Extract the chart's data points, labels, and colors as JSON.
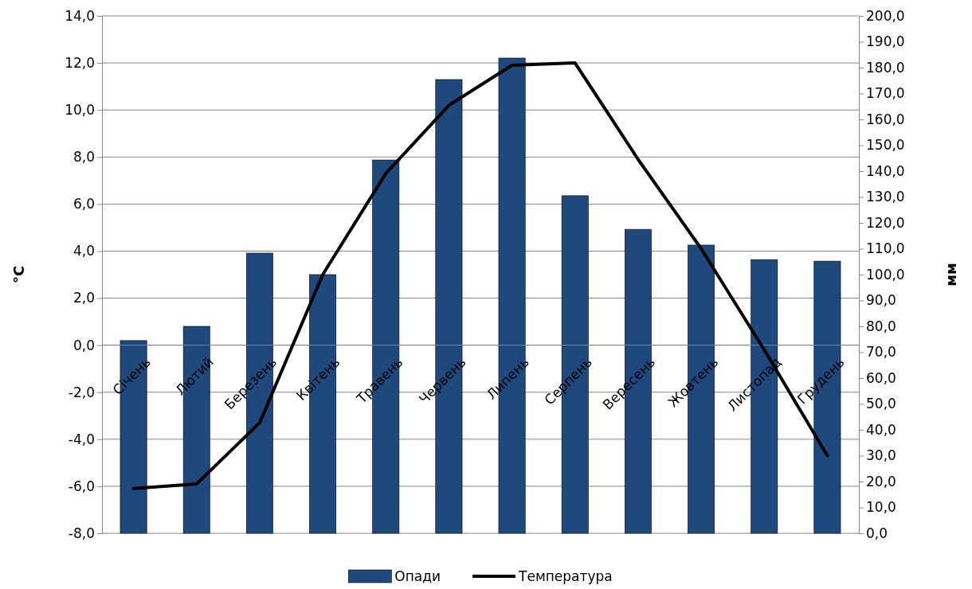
{
  "chart_data": {
    "type": "bar",
    "ylabel": "°C",
    "y2label": "мм",
    "categories": [
      "Січень",
      "Лютий",
      "Березень",
      "Квітень",
      "Травень",
      "Червень",
      "Липень",
      "Серпень",
      "Вересень",
      "Жовтень",
      "Листопад",
      "Грудень"
    ],
    "series": [
      {
        "name": "Опади",
        "axis": "y2",
        "color": "#1f497d",
        "values": [
          74.5,
          80.0,
          108.3,
          100.0,
          144.3,
          175.4,
          183.7,
          130.5,
          117.5,
          111.4,
          105.8,
          105.2
        ]
      },
      {
        "name": "Температура",
        "type": "line",
        "axis": "y",
        "color": "#000000",
        "values": [
          -6.1,
          -5.9,
          -3.3,
          3.0,
          7.3,
          10.2,
          11.9,
          12.0,
          7.9,
          4.1,
          -0.2,
          -4.7
        ]
      }
    ],
    "ylim": [
      -8,
      14
    ],
    "yticks": [
      {
        "value": -8,
        "label": "-8,0"
      },
      {
        "value": -6,
        "label": "-6,0"
      },
      {
        "value": -4,
        "label": "-4,0"
      },
      {
        "value": -2,
        "label": "-2,0"
      },
      {
        "value": 0,
        "label": "0,0"
      },
      {
        "value": 2,
        "label": "2,0"
      },
      {
        "value": 4,
        "label": "4,0"
      },
      {
        "value": 6,
        "label": "6,0"
      },
      {
        "value": 8,
        "label": "8,0"
      },
      {
        "value": 10,
        "label": "10,0"
      },
      {
        "value": 12,
        "label": "12,0"
      },
      {
        "value": 14,
        "label": "14,0"
      }
    ],
    "y2lim": [
      0,
      200
    ],
    "y2ticks": [
      {
        "value": 0,
        "label": "0,0"
      },
      {
        "value": 10,
        "label": "10,0"
      },
      {
        "value": 20,
        "label": "20,0"
      },
      {
        "value": 30,
        "label": "30,0"
      },
      {
        "value": 40,
        "label": "40,0"
      },
      {
        "value": 50,
        "label": "50,0"
      },
      {
        "value": 60,
        "label": "60,0"
      },
      {
        "value": 70,
        "label": "70,0"
      },
      {
        "value": 80,
        "label": "80,0"
      },
      {
        "value": 90,
        "label": "90,0"
      },
      {
        "value": 100,
        "label": "100,0"
      },
      {
        "value": 110,
        "label": "110,0"
      },
      {
        "value": 120,
        "label": "120,0"
      },
      {
        "value": 130,
        "label": "130,0"
      },
      {
        "value": 140,
        "label": "140,0"
      },
      {
        "value": 150,
        "label": "150,0"
      },
      {
        "value": 160,
        "label": "160,0"
      },
      {
        "value": 170,
        "label": "170,0"
      },
      {
        "value": 180,
        "label": "180,0"
      },
      {
        "value": 190,
        "label": "190,0"
      },
      {
        "value": 200,
        "label": "200,0"
      }
    ],
    "grid": "y",
    "legend": "bottom",
    "marker": "none",
    "line_style": "solid"
  }
}
